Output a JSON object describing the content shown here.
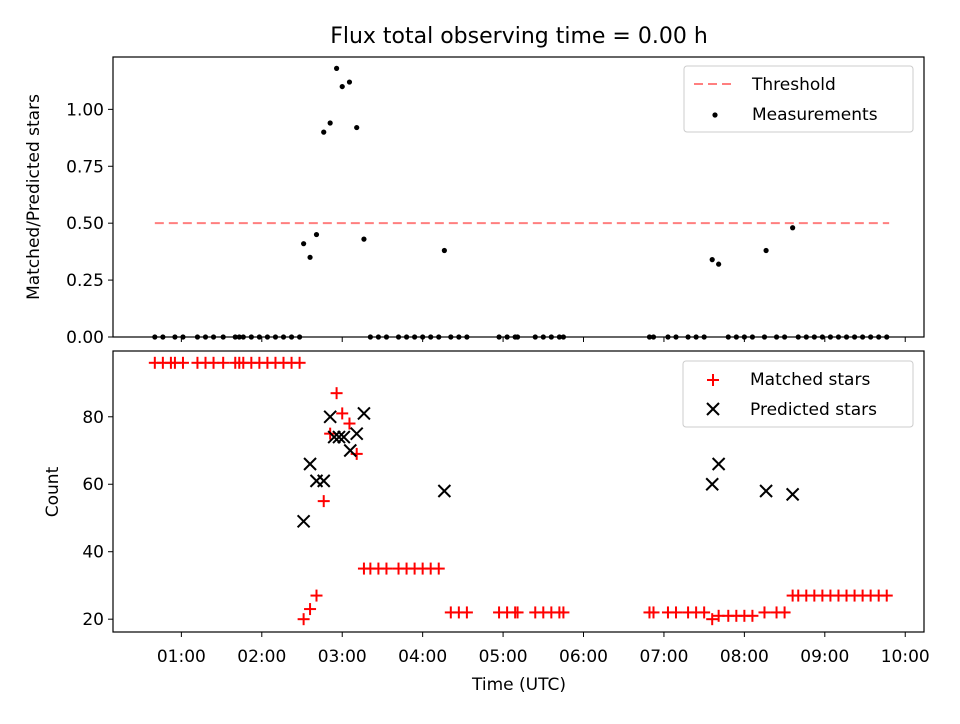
{
  "chart_data": [
    {
      "type": "scatter",
      "title": "Flux total observing time = 0.00 h",
      "xlabel": "",
      "ylabel": "Matched/Predicted stars",
      "xlim": [
        "00:09",
        "10:14"
      ],
      "ylim": [
        0,
        1.23
      ],
      "x_unit": "hours UTC (decimal)",
      "yticks": [
        0.0,
        0.25,
        0.5,
        0.75,
        1.0
      ],
      "ytick_labels": [
        "0.00",
        "0.25",
        "0.50",
        "0.75",
        "1.00"
      ],
      "legend_position": "top-right",
      "legend": [
        "Threshold",
        "Measurements"
      ],
      "threshold": {
        "name": "Threshold",
        "y": 0.5,
        "x_range": [
          0.67,
          9.8
        ],
        "color": "#ff7f7f"
      },
      "series": [
        {
          "name": "Measurements",
          "color": "#000000",
          "points": [
            [
              0.67,
              0
            ],
            [
              0.77,
              0
            ],
            [
              0.92,
              0
            ],
            [
              1.02,
              0
            ],
            [
              1.2,
              0
            ],
            [
              1.3,
              0
            ],
            [
              1.4,
              0
            ],
            [
              1.52,
              0
            ],
            [
              1.67,
              0
            ],
            [
              1.72,
              0
            ],
            [
              1.77,
              0
            ],
            [
              1.87,
              0
            ],
            [
              1.97,
              0
            ],
            [
              2.07,
              0
            ],
            [
              2.17,
              0
            ],
            [
              2.27,
              0
            ],
            [
              2.37,
              0
            ],
            [
              2.47,
              0
            ],
            [
              2.52,
              0.41
            ],
            [
              2.6,
              0.35
            ],
            [
              2.68,
              0.45
            ],
            [
              2.77,
              0.9
            ],
            [
              2.85,
              0.94
            ],
            [
              2.93,
              1.18
            ],
            [
              3.0,
              1.1
            ],
            [
              3.09,
              1.12
            ],
            [
              3.18,
              0.92
            ],
            [
              3.27,
              0.43
            ],
            [
              3.35,
              0
            ],
            [
              3.45,
              0
            ],
            [
              3.55,
              0
            ],
            [
              3.7,
              0
            ],
            [
              3.8,
              0
            ],
            [
              3.9,
              0
            ],
            [
              4.0,
              0
            ],
            [
              4.1,
              0
            ],
            [
              4.2,
              0
            ],
            [
              4.27,
              0.38
            ],
            [
              4.35,
              0
            ],
            [
              4.45,
              0
            ],
            [
              4.55,
              0
            ],
            [
              4.95,
              0
            ],
            [
              5.05,
              0
            ],
            [
              5.15,
              0
            ],
            [
              5.18,
              0
            ],
            [
              5.4,
              0
            ],
            [
              5.5,
              0
            ],
            [
              5.6,
              0
            ],
            [
              5.7,
              0
            ],
            [
              5.75,
              0
            ],
            [
              6.82,
              0
            ],
            [
              6.87,
              0
            ],
            [
              7.05,
              0
            ],
            [
              7.15,
              0
            ],
            [
              7.3,
              0
            ],
            [
              7.4,
              0
            ],
            [
              7.5,
              0
            ],
            [
              7.6,
              0.34
            ],
            [
              7.68,
              0.32
            ],
            [
              7.8,
              0
            ],
            [
              7.9,
              0
            ],
            [
              8.0,
              0
            ],
            [
              8.1,
              0
            ],
            [
              8.25,
              0
            ],
            [
              8.27,
              0.38
            ],
            [
              8.4,
              0
            ],
            [
              8.5,
              0
            ],
            [
              8.6,
              0.48
            ],
            [
              8.67,
              0
            ],
            [
              8.77,
              0
            ],
            [
              8.87,
              0
            ],
            [
              8.97,
              0
            ],
            [
              9.07,
              0
            ],
            [
              9.17,
              0
            ],
            [
              9.27,
              0
            ],
            [
              9.37,
              0
            ],
            [
              9.47,
              0
            ],
            [
              9.57,
              0
            ],
            [
              9.67,
              0
            ],
            [
              9.77,
              0
            ]
          ]
        }
      ]
    },
    {
      "type": "scatter",
      "title": "",
      "xlabel": "Time (UTC)",
      "ylabel": "Count",
      "xlim": [
        "00:09",
        "10:14"
      ],
      "ylim": [
        16.2,
        99.5
      ],
      "x_unit": "hours UTC (decimal)",
      "xticks": [
        1,
        2,
        3,
        4,
        5,
        6,
        7,
        8,
        9,
        10
      ],
      "xtick_labels": [
        "01:00",
        "02:00",
        "03:00",
        "04:00",
        "05:00",
        "06:00",
        "07:00",
        "08:00",
        "09:00",
        "10:00"
      ],
      "yticks": [
        20,
        40,
        60,
        80
      ],
      "ytick_labels": [
        "20",
        "40",
        "60",
        "80"
      ],
      "legend_position": "top-right",
      "legend": [
        "Matched stars",
        "Predicted stars"
      ],
      "series": [
        {
          "name": "Matched stars",
          "marker": "plus",
          "color": "#ff0000",
          "points": [
            [
              0.67,
              96
            ],
            [
              0.77,
              96
            ],
            [
              0.87,
              96
            ],
            [
              0.92,
              96
            ],
            [
              1.02,
              96
            ],
            [
              1.2,
              96
            ],
            [
              1.3,
              96
            ],
            [
              1.4,
              96
            ],
            [
              1.52,
              96
            ],
            [
              1.67,
              96
            ],
            [
              1.72,
              96
            ],
            [
              1.77,
              96
            ],
            [
              1.87,
              96
            ],
            [
              1.97,
              96
            ],
            [
              2.07,
              96
            ],
            [
              2.17,
              96
            ],
            [
              2.27,
              96
            ],
            [
              2.37,
              96
            ],
            [
              2.47,
              96
            ],
            [
              2.52,
              20
            ],
            [
              2.6,
              23
            ],
            [
              2.68,
              27
            ],
            [
              2.77,
              55
            ],
            [
              2.85,
              75
            ],
            [
              2.93,
              87
            ],
            [
              3.0,
              81
            ],
            [
              3.09,
              78
            ],
            [
              3.18,
              69
            ],
            [
              3.27,
              35
            ],
            [
              3.35,
              35
            ],
            [
              3.45,
              35
            ],
            [
              3.55,
              35
            ],
            [
              3.7,
              35
            ],
            [
              3.8,
              35
            ],
            [
              3.9,
              35
            ],
            [
              4.0,
              35
            ],
            [
              4.1,
              35
            ],
            [
              4.2,
              35
            ],
            [
              4.35,
              22
            ],
            [
              4.45,
              22
            ],
            [
              4.55,
              22
            ],
            [
              4.95,
              22
            ],
            [
              5.05,
              22
            ],
            [
              5.15,
              22
            ],
            [
              5.18,
              22
            ],
            [
              5.4,
              22
            ],
            [
              5.5,
              22
            ],
            [
              5.6,
              22
            ],
            [
              5.7,
              22
            ],
            [
              5.75,
              22
            ],
            [
              6.82,
              22
            ],
            [
              6.87,
              22
            ],
            [
              7.05,
              22
            ],
            [
              7.15,
              22
            ],
            [
              7.3,
              22
            ],
            [
              7.4,
              22
            ],
            [
              7.5,
              22
            ],
            [
              7.6,
              20
            ],
            [
              7.68,
              21
            ],
            [
              7.8,
              21
            ],
            [
              7.9,
              21
            ],
            [
              8.0,
              21
            ],
            [
              8.1,
              21
            ],
            [
              8.25,
              22
            ],
            [
              8.4,
              22
            ],
            [
              8.5,
              22
            ],
            [
              8.6,
              27
            ],
            [
              8.67,
              27
            ],
            [
              8.77,
              27
            ],
            [
              8.87,
              27
            ],
            [
              8.97,
              27
            ],
            [
              9.07,
              27
            ],
            [
              9.17,
              27
            ],
            [
              9.27,
              27
            ],
            [
              9.37,
              27
            ],
            [
              9.47,
              27
            ],
            [
              9.57,
              27
            ],
            [
              9.67,
              27
            ],
            [
              9.77,
              27
            ]
          ]
        },
        {
          "name": "Predicted stars",
          "marker": "x",
          "color": "#000000",
          "points": [
            [
              2.52,
              49
            ],
            [
              2.6,
              66
            ],
            [
              2.68,
              61
            ],
            [
              2.77,
              61
            ],
            [
              2.85,
              80
            ],
            [
              2.9,
              74
            ],
            [
              2.96,
              74
            ],
            [
              3.02,
              74
            ],
            [
              3.1,
              70
            ],
            [
              3.18,
              75
            ],
            [
              3.27,
              81
            ],
            [
              4.27,
              58
            ],
            [
              7.6,
              60
            ],
            [
              7.68,
              66
            ],
            [
              8.27,
              58
            ],
            [
              8.6,
              57
            ]
          ]
        }
      ]
    }
  ]
}
